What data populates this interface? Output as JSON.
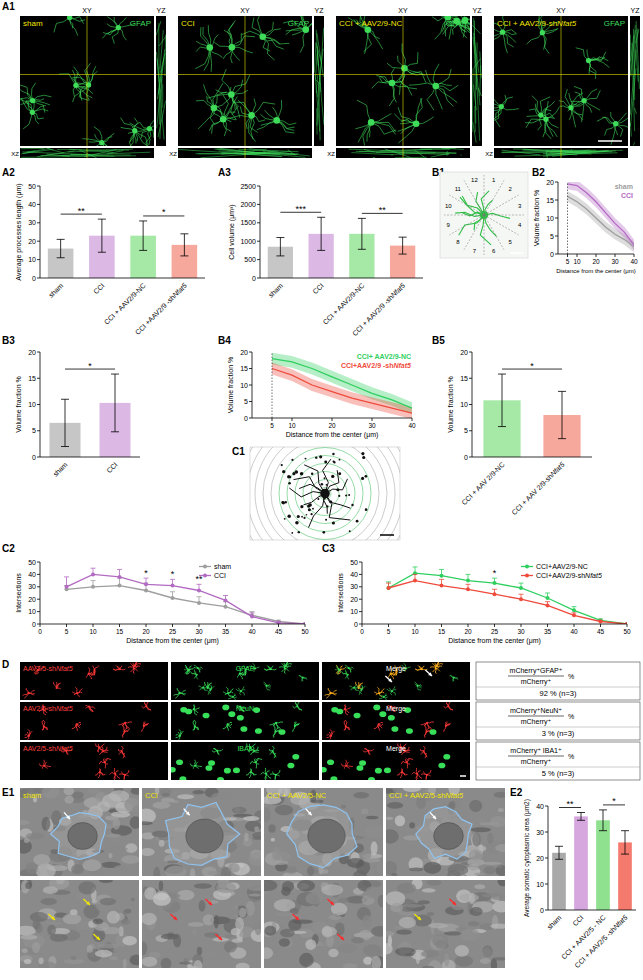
{
  "panel_labels": [
    "A1",
    "A2",
    "A3",
    "B1",
    "B2",
    "B3",
    "B4",
    "B5",
    "C1",
    "C2",
    "C3",
    "D",
    "E1",
    "E2"
  ],
  "A1_images": {
    "conditions": [
      "sham",
      "CCI",
      "CCI + AAV2/9-NC",
      "CCI + AAV2/9-shNfat5"
    ],
    "views": [
      "XY",
      "YZ",
      "XZ"
    ],
    "stain": "GFAP"
  },
  "B1_image": {
    "sectors": [
      "1",
      "2",
      "3",
      "4",
      "5",
      "6",
      "7",
      "8",
      "9",
      "10",
      "11",
      "12"
    ]
  },
  "D_panel": {
    "vector": "AAV2/5-shNfat5",
    "markers": [
      "GFAP",
      "NeuN",
      "IBA1"
    ],
    "merge": "Merge",
    "table": [
      {
        "numerator": "mCherry⁺GFAP⁺",
        "denominator": "mCherry⁺",
        "unit": "%",
        "result": "92 % (n=3)"
      },
      {
        "numerator": "mCherry⁺NeuN⁺",
        "denominator": "mCherry⁺",
        "unit": "%",
        "result": "3 % (n=3)"
      },
      {
        "numerator": "mCherry⁺ IBA1⁺",
        "denominator": "mCherry⁺",
        "unit": "%",
        "result": "5 % (n=3)"
      }
    ]
  },
  "E1_images": {
    "conditions": [
      "sham",
      "CCI",
      "CCI + AAV2/5-NC",
      "CCI + AAV2/5-shNfat5"
    ]
  },
  "chart_data": [
    {
      "type": "bar",
      "y_label": "Average processes length (μm)",
      "categories": [
        "sham",
        "CCI",
        "CCI + AAV2/9-NC",
        "CCI +AAV2/9 -shNfat5"
      ],
      "values": [
        16,
        23,
        23,
        18
      ],
      "errors": [
        5,
        9,
        8,
        6
      ],
      "colors": [
        "#c6c6c6",
        "#dcb8e4",
        "#a6e8a6",
        "#f7a89c"
      ],
      "ylim": [
        0,
        50
      ],
      "yticks": [
        0,
        10,
        20,
        30,
        40,
        50
      ],
      "annotations": [
        {
          "text": "**",
          "between": [
            0,
            1
          ]
        },
        {
          "text": "*",
          "between": [
            2,
            3
          ]
        }
      ]
    },
    {
      "type": "bar",
      "y_label": "Cell volume (μm³)",
      "categories": [
        "sham",
        "CCI",
        "CCI + AAV2/9-NC",
        "CCI + AAV2/9 -shNfat5"
      ],
      "values": [
        850,
        1200,
        1200,
        880
      ],
      "errors": [
        250,
        450,
        420,
        230
      ],
      "colors": [
        "#c6c6c6",
        "#dcb8e4",
        "#a6e8a6",
        "#f7a89c"
      ],
      "ylim": [
        0,
        2500
      ],
      "yticks": [
        0,
        500,
        1000,
        1500,
        2000,
        2500
      ],
      "annotations": [
        {
          "text": "***",
          "between": [
            0,
            1
          ]
        },
        {
          "text": "**",
          "between": [
            2,
            3
          ]
        }
      ]
    },
    {
      "type": "line",
      "y_label": "Volume fraction %",
      "x_label": "Distance from the center (μm)",
      "x": [
        5,
        10,
        15,
        20,
        25,
        30,
        35,
        40
      ],
      "series": [
        {
          "name": "sham",
          "color": "#9e9e9e",
          "values": [
            16,
            14.5,
            12.5,
            10,
            7.5,
            5.5,
            4,
            2
          ],
          "errors": [
            1.5,
            1.5,
            1.5,
            1.5,
            1.5,
            1.5,
            1.5,
            1.5
          ]
        },
        {
          "name": "CCI",
          "color": "#b36ac2",
          "values": [
            19.5,
            19,
            17,
            14.5,
            11.5,
            8.5,
            6,
            2.5
          ],
          "errors": [
            1.5,
            1.5,
            1.5,
            1.5,
            1.5,
            1.5,
            1.5,
            1.5
          ]
        }
      ],
      "xlim": [
        0,
        40
      ],
      "xticks": [
        5,
        10,
        20,
        30,
        40
      ],
      "ylim": [
        0,
        20
      ],
      "yticks": [
        0,
        5,
        10,
        15,
        20
      ],
      "legend": "upper right"
    },
    {
      "type": "bar",
      "y_label": "Volume fraction %",
      "categories": [
        "sham",
        "CCI"
      ],
      "values": [
        6.5,
        10.3
      ],
      "errors": [
        4.5,
        5.5
      ],
      "colors": [
        "#c6c6c6",
        "#dcb8e4"
      ],
      "ylim": [
        0,
        20
      ],
      "yticks": [
        0,
        5,
        10,
        15,
        20
      ],
      "annotations": [
        {
          "text": "*",
          "between": [
            0,
            1
          ]
        }
      ]
    },
    {
      "type": "line",
      "y_label": "Volume fraction %",
      "x_label": "Distance from the center (μm)",
      "x": [
        5,
        10,
        15,
        20,
        25,
        30,
        35,
        40
      ],
      "series": [
        {
          "name": "CCI+ AAV2/9-NC",
          "color": "#2fcf5f",
          "values": [
            18,
            17,
            15,
            12.5,
            10,
            7.5,
            5.5,
            3
          ],
          "errors": [
            1.8,
            1.8,
            1.8,
            1.8,
            1.8,
            1.8,
            1.8,
            1.8
          ]
        },
        {
          "name": "CCI+AAV2/9 -shNfat5",
          "color": "#ef4b3c",
          "values": [
            15,
            13,
            10,
            8,
            6,
            4.5,
            3,
            1.5
          ],
          "errors": [
            1.8,
            1.8,
            1.8,
            1.8,
            1.8,
            1.8,
            1.8,
            1.8
          ]
        }
      ],
      "xlim": [
        0,
        40
      ],
      "xticks": [
        5,
        10,
        20,
        30,
        40
      ],
      "ylim": [
        0,
        20
      ],
      "yticks": [
        0,
        5,
        10,
        15,
        20
      ],
      "legend": "upper right"
    },
    {
      "type": "bar",
      "y_label": "Volume fraction %",
      "categories": [
        "CCI + AAV 2/9-NC",
        "CCI + AAV 2/9-shNfat5"
      ],
      "values": [
        10.8,
        8
      ],
      "errors": [
        5,
        4.5
      ],
      "colors": [
        "#a6e8a6",
        "#f7a89c"
      ],
      "ylim": [
        0,
        20
      ],
      "yticks": [
        0,
        5,
        10,
        15,
        20
      ],
      "annotations": [
        {
          "text": "*",
          "between": [
            0,
            1
          ]
        }
      ]
    },
    {
      "type": "line",
      "y_label": "Intersections",
      "x_label": "Distance from the center (μm)",
      "x": [
        5,
        10,
        15,
        20,
        25,
        30,
        35,
        40,
        45,
        50
      ],
      "series": [
        {
          "name": "sham",
          "color": "#9e9e9e",
          "marker": "circle",
          "values": [
            28,
            30,
            31,
            27,
            21,
            17,
            14,
            7,
            2,
            0
          ],
          "errors": [
            3,
            5,
            6,
            6,
            5,
            5,
            4,
            3,
            1,
            0
          ]
        },
        {
          "name": "CCI",
          "color": "#b36ac2",
          "marker": "circle",
          "values": [
            30,
            40,
            38,
            32,
            31,
            27,
            19,
            6,
            1,
            0
          ],
          "errors": [
            8,
            5,
            6,
            5,
            5,
            5,
            4,
            3,
            1,
            0
          ]
        }
      ],
      "xlim": [
        0,
        50
      ],
      "xticks": [
        0,
        5,
        10,
        15,
        20,
        25,
        30,
        35,
        40,
        45,
        50
      ],
      "ylim": [
        0,
        50
      ],
      "yticks": [
        0,
        10,
        20,
        30,
        40,
        50
      ],
      "legend": "upper right",
      "annotations": [
        {
          "text": "*",
          "x": 20
        },
        {
          "text": "*",
          "x": 25
        },
        {
          "text": "**",
          "x": 30
        }
      ]
    },
    {
      "type": "line",
      "y_label": "Intersections",
      "x_label": "Distance from the center (μm)",
      "x": [
        5,
        10,
        15,
        20,
        25,
        30,
        35,
        40,
        45,
        50
      ],
      "series": [
        {
          "name": "CCI+AAV2/9-NC",
          "color": "#2fcf5f",
          "marker": "circle",
          "values": [
            29,
            41,
            39,
            35,
            33,
            29,
            21,
            11,
            3,
            0
          ],
          "errors": [
            5,
            5,
            5,
            5,
            4,
            4,
            4,
            3,
            1,
            0
          ]
        },
        {
          "name": "CCI+AAV2/9-shNfat5",
          "color": "#ef4b3c",
          "marker": "circle",
          "values": [
            29,
            35,
            31,
            28,
            24,
            20,
            15,
            7,
            2,
            0
          ],
          "errors": [
            4,
            5,
            5,
            4,
            4,
            4,
            3,
            2,
            1,
            0
          ]
        }
      ],
      "xlim": [
        0,
        50
      ],
      "xticks": [
        0,
        5,
        10,
        15,
        20,
        25,
        30,
        35,
        40,
        45,
        50
      ],
      "ylim": [
        0,
        50
      ],
      "yticks": [
        0,
        10,
        20,
        30,
        40,
        50
      ],
      "legend": "upper right",
      "annotations": [
        {
          "text": "*",
          "x": 25
        }
      ]
    },
    {
      "type": "bar",
      "y_label": "Average somatic cytoplasmic area (μm2)",
      "categories": [
        "sham",
        "CCI",
        "CCI + AAV2/5 - NC",
        "CCI + AAV2/5 -shNfat5"
      ],
      "values": [
        22,
        36,
        34.5,
        26
      ],
      "errors": [
        2.5,
        1.5,
        4,
        4.5
      ],
      "colors": [
        "#a9a9a9",
        "#d6a6df",
        "#8fe08f",
        "#f47a6e"
      ],
      "ylim": [
        0,
        40
      ],
      "yticks": [
        0,
        10,
        20,
        30,
        40
      ],
      "annotations": [
        {
          "text": "**",
          "between": [
            0,
            1
          ]
        },
        {
          "text": "*",
          "between": [
            2,
            3
          ]
        }
      ]
    }
  ]
}
